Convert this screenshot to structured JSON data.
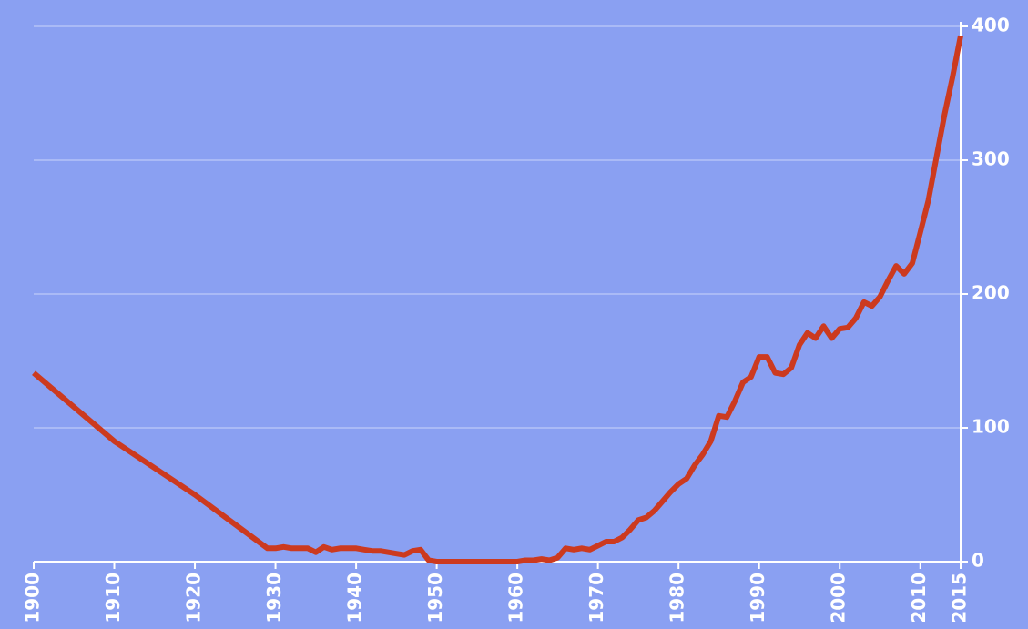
{
  "chart_data": {
    "type": "line",
    "x": [
      1900,
      1910,
      1920,
      1929,
      1930,
      1931,
      1932,
      1933,
      1934,
      1935,
      1936,
      1937,
      1938,
      1939,
      1940,
      1941,
      1942,
      1943,
      1944,
      1945,
      1946,
      1947,
      1948,
      1949,
      1950,
      1955,
      1960,
      1961,
      1962,
      1963,
      1964,
      1965,
      1966,
      1967,
      1968,
      1969,
      1970,
      1971,
      1972,
      1973,
      1974,
      1975,
      1976,
      1977,
      1978,
      1979,
      1980,
      1981,
      1982,
      1983,
      1984,
      1985,
      1986,
      1987,
      1988,
      1989,
      1990,
      1991,
      1992,
      1993,
      1994,
      1995,
      1996,
      1997,
      1998,
      1999,
      2000,
      2001,
      2002,
      2003,
      2004,
      2005,
      2006,
      2007,
      2008,
      2009,
      2010,
      2011,
      2012,
      2013,
      2014,
      2015
    ],
    "values": [
      141,
      90,
      50,
      10,
      10,
      11,
      10,
      10,
      10,
      7,
      11,
      9,
      10,
      10,
      10,
      9,
      8,
      8,
      7,
      6,
      5,
      8,
      9,
      1,
      0,
      0,
      0,
      1,
      1,
      2,
      1,
      3,
      10,
      9,
      10,
      9,
      12,
      15,
      15,
      18,
      24,
      31,
      33,
      38,
      45,
      52,
      58,
      62,
      72,
      80,
      90,
      109,
      108,
      120,
      134,
      138,
      153,
      153,
      141,
      140,
      145,
      162,
      171,
      167,
      176,
      167,
      174,
      175,
      182,
      194,
      191,
      198,
      210,
      221,
      215,
      223,
      246,
      270,
      302,
      334,
      362,
      393
    ],
    "color": "#cc3a1f",
    "xlim": [
      1900,
      2015
    ],
    "xticks": [
      1900,
      1910,
      1920,
      1930,
      1940,
      1950,
      1960,
      1970,
      1980,
      1990,
      2000,
      2010,
      2015
    ],
    "ylim": [
      0,
      400
    ],
    "yticks": [
      0,
      100,
      200,
      300,
      400
    ],
    "grid": true
  }
}
